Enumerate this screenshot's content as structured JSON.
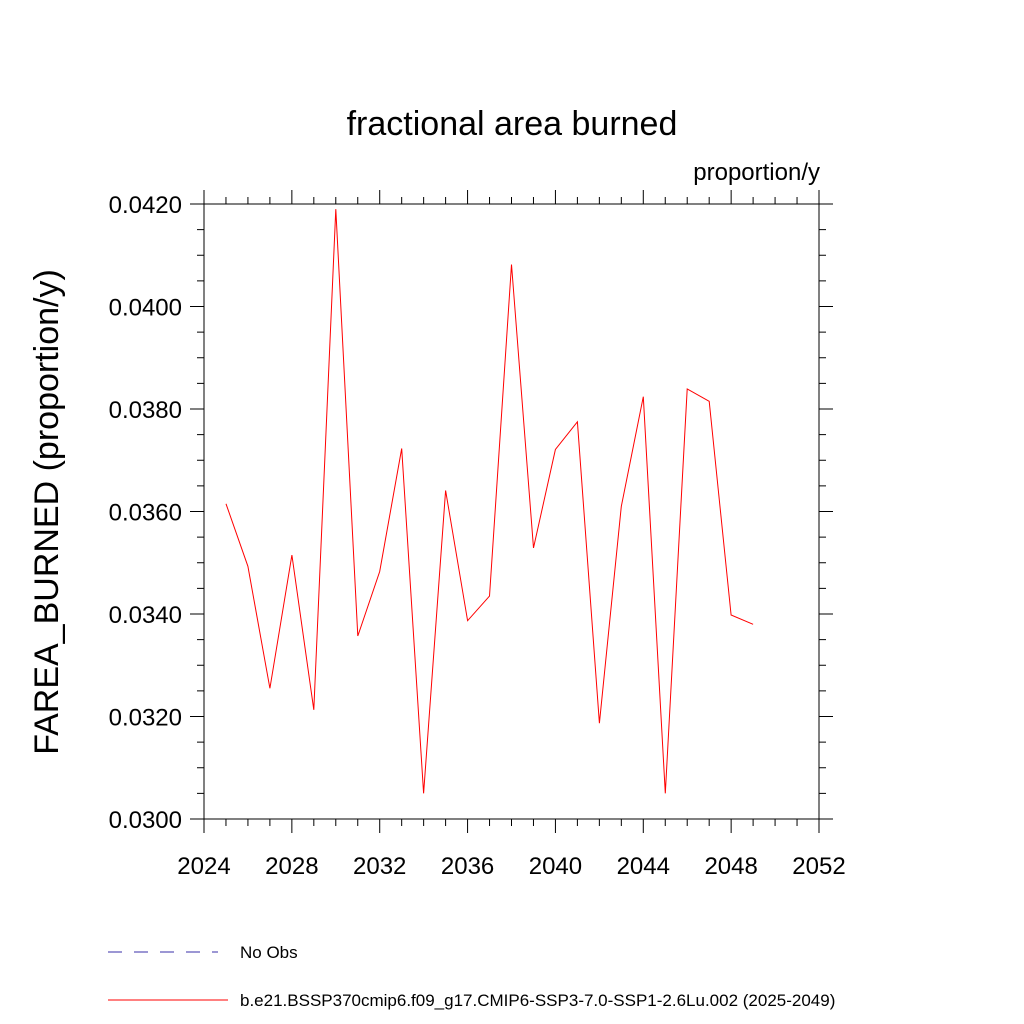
{
  "chart_data": {
    "type": "line",
    "title": "fractional area burned",
    "units_label": "proportion/y",
    "xlabel": "",
    "ylabel": "FAREA_BURNED  (proportion/y)",
    "xlim": [
      2024,
      2052
    ],
    "ylim": [
      0.03,
      0.042
    ],
    "x_ticks": [
      "2024",
      "2028",
      "2032",
      "2036",
      "2040",
      "2044",
      "2048",
      "2052"
    ],
    "y_ticks": [
      "0.0300",
      "0.0320",
      "0.0340",
      "0.0360",
      "0.0380",
      "0.0400",
      "0.0420"
    ],
    "grid": false,
    "series": [
      {
        "name": "b.e21.BSSP370cmip6.f09_g17.CMIP6-SSP3-7.0-SSP1-2.6Lu.002 (2025-2049)",
        "color": "#ff0000",
        "x": [
          2025,
          2026,
          2027,
          2028,
          2029,
          2030,
          2031,
          2032,
          2033,
          2034,
          2035,
          2036,
          2037,
          2038,
          2039,
          2040,
          2041,
          2042,
          2043,
          2044,
          2045,
          2046,
          2047,
          2048,
          2049
        ],
        "y": [
          0.03615,
          0.03493,
          0.03255,
          0.03515,
          0.03213,
          0.0419,
          0.03357,
          0.03483,
          0.03723,
          0.0305,
          0.03641,
          0.03387,
          0.03435,
          0.04082,
          0.03529,
          0.03721,
          0.03775,
          0.03187,
          0.0361,
          0.03824,
          0.0305,
          0.03839,
          0.03815,
          0.03398,
          0.0338
        ]
      }
    ],
    "legend": [
      {
        "label": "No Obs",
        "color": "#3a2fa8",
        "style": "dashed"
      },
      {
        "label": "b.e21.BSSP370cmip6.f09_g17.CMIP6-SSP3-7.0-SSP1-2.6Lu.002 (2025-2049)",
        "color": "#ff0000",
        "style": "solid"
      }
    ],
    "legend_position": "bottom-left"
  }
}
